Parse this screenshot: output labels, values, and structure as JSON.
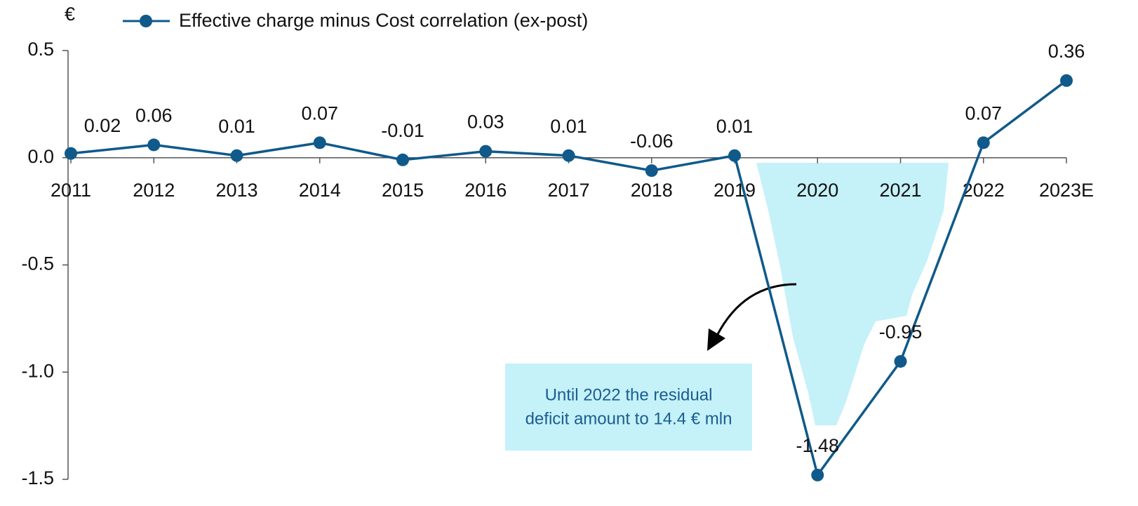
{
  "chart_data": {
    "type": "line",
    "unit_label": "€",
    "categories": [
      "2011",
      "2012",
      "2013",
      "2014",
      "2015",
      "2016",
      "2017",
      "2018",
      "2019",
      "2020",
      "2021",
      "2022",
      "2023E"
    ],
    "series": [
      {
        "name": "Effective charge minus Cost correlation (ex-post)",
        "color": "#0f5a8a",
        "values": [
          0.02,
          0.06,
          0.01,
          0.07,
          -0.01,
          0.03,
          0.01,
          -0.06,
          0.01,
          -1.48,
          -0.95,
          0.07,
          0.36
        ]
      }
    ],
    "ylim": [
      -1.5,
      0.5
    ],
    "yticks": [
      -1.5,
      {
        "value": -1.0,
        "label": "-1.0"
      },
      -0.5,
      {
        "value": 0,
        "label": "0.0"
      },
      0.5
    ],
    "annotation": [
      "Until 2022 the residual",
      "deficit amount to 14.4 € mln"
    ],
    "legend": "top"
  }
}
